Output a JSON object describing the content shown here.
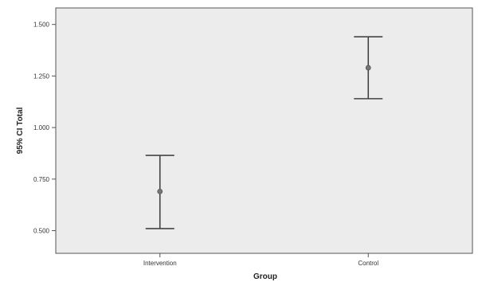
{
  "chart_data": {
    "type": "errorbar",
    "title": "",
    "xlabel": "Group",
    "ylabel": "95% CI Total",
    "categories": [
      "Intervention",
      "Control"
    ],
    "series": [
      {
        "mean": [
          0.69,
          1.29
        ],
        "lower": [
          0.51,
          1.14
        ],
        "upper": [
          0.865,
          1.44
        ]
      }
    ],
    "ylim": [
      0.39,
      1.58
    ],
    "yticks": [
      0.5,
      0.75,
      1.0,
      1.25,
      1.5
    ],
    "ytick_labels": [
      "0.500",
      "0.750",
      "1.000",
      "1.250",
      "1.500"
    ],
    "grid": false,
    "colors": {
      "plot_background": "#ececec",
      "bar": "#444444",
      "marker": "#777777",
      "axis": "#555555"
    }
  }
}
